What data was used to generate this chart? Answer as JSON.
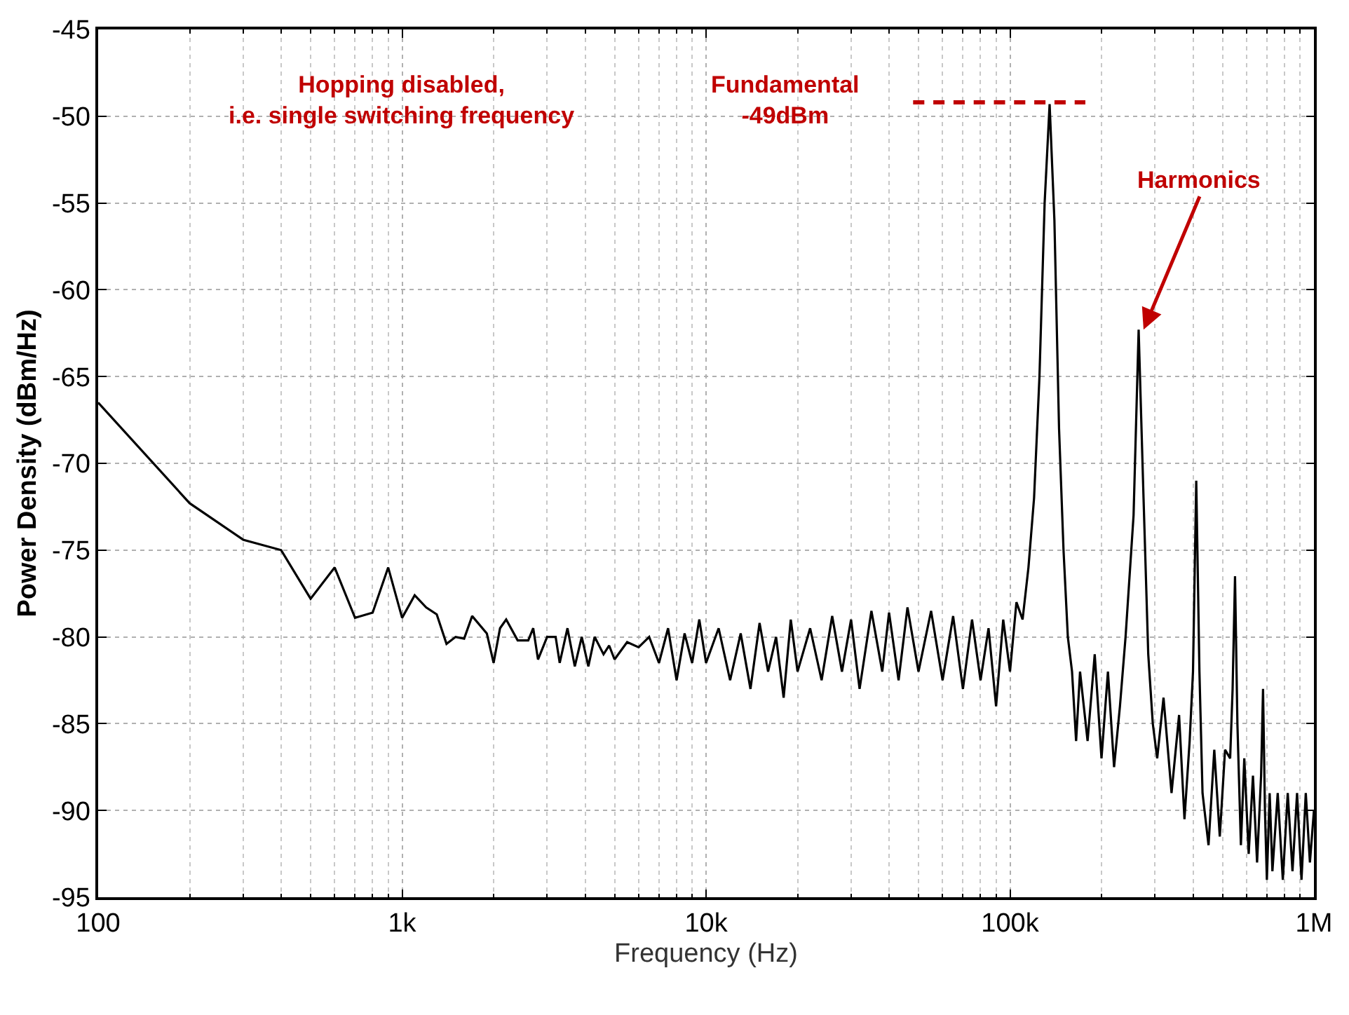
{
  "chart_data": {
    "type": "line",
    "xlabel": "Frequency (Hz)",
    "ylabel": "Power Density (dBm/Hz)",
    "log": "x",
    "grid": true,
    "legend": false,
    "marker": "none",
    "xlim": [
      100,
      1000000
    ],
    "xticks": [
      {
        "value": 100,
        "label": "100"
      },
      {
        "value": 1000,
        "label": "1k"
      },
      {
        "value": 10000,
        "label": "10k"
      },
      {
        "value": 100000,
        "label": "100k"
      },
      {
        "value": 1000000,
        "label": "1M"
      }
    ],
    "ylim": [
      -95,
      -45
    ],
    "yticks": [
      -95,
      -90,
      -85,
      -80,
      -75,
      -70,
      -65,
      -60,
      -55,
      -50,
      -45
    ],
    "annotations": [
      "Hopping disabled,\ni.e. single switching frequency",
      "Fundamental\n-49dBm",
      {
        "text": "Harmonics",
        "x": 275000,
        "y": -62.3
      }
    ],
    "series": [
      {
        "color": "#000000",
        "line_style": "solid",
        "x": [
          100,
          200,
          300,
          400,
          500,
          600,
          700,
          800,
          900,
          1000,
          1100,
          1200,
          1300,
          1400,
          1500,
          1600,
          1700,
          1900,
          2000,
          2100,
          2200,
          2400,
          2600,
          2700,
          2800,
          3000,
          3200,
          3300,
          3500,
          3700,
          3900,
          4100,
          4300,
          4600,
          4800,
          5000,
          5500,
          6000,
          6500,
          7000,
          7500,
          8000,
          8500,
          9000,
          9500,
          10000,
          11000,
          12000,
          13000,
          14000,
          15000,
          16000,
          17000,
          18000,
          19000,
          20000,
          22000,
          24000,
          26000,
          28000,
          30000,
          32000,
          35000,
          38000,
          40000,
          43000,
          46000,
          50000,
          55000,
          60000,
          65000,
          70000,
          75000,
          80000,
          85000,
          90000,
          95000,
          100000,
          105000,
          110000,
          115000,
          120000,
          125000,
          130000,
          135000,
          140000,
          145000,
          150000,
          155000,
          160000,
          165000,
          170000,
          180000,
          190000,
          200000,
          210000,
          220000,
          230000,
          240000,
          255000,
          265000,
          275000,
          285000,
          295000,
          305000,
          320000,
          340000,
          360000,
          375000,
          390000,
          400000,
          410000,
          420000,
          430000,
          450000,
          470000,
          490000,
          510000,
          530000,
          540000,
          550000,
          560000,
          575000,
          590000,
          610000,
          630000,
          650000,
          670000,
          680000,
          690000,
          700000,
          715000,
          730000,
          760000,
          790000,
          820000,
          850000,
          880000,
          910000,
          940000,
          970000,
          1000000
        ],
        "values": [
          -66.5,
          -72.3,
          -74.4,
          -75,
          -77.8,
          -76,
          -78.9,
          -78.6,
          -76,
          -78.9,
          -77.6,
          -78.3,
          -78.7,
          -80.4,
          -80,
          -80.1,
          -78.8,
          -79.8,
          -81.5,
          -79.5,
          -79,
          -80.2,
          -80.2,
          -79.5,
          -81.3,
          -80,
          -80,
          -81.5,
          -79.5,
          -81.7,
          -80,
          -81.7,
          -80,
          -81,
          -80.5,
          -81.3,
          -80.3,
          -80.6,
          -80,
          -81.5,
          -79.5,
          -82.5,
          -79.8,
          -81.5,
          -79,
          -81.5,
          -79.5,
          -82.5,
          -79.8,
          -83,
          -79.2,
          -82,
          -80,
          -83.5,
          -79,
          -82,
          -79.5,
          -82.5,
          -78.8,
          -82,
          -79,
          -83,
          -78.5,
          -82,
          -78.6,
          -82.5,
          -78.3,
          -82,
          -78.5,
          -82.5,
          -78.8,
          -83,
          -79,
          -82.5,
          -79.5,
          -84,
          -79,
          -82,
          -78,
          -79,
          -76,
          -72,
          -65,
          -55,
          -49.3,
          -56,
          -68,
          -75,
          -80,
          -82,
          -86,
          -82,
          -86,
          -81,
          -87,
          -82,
          -87.5,
          -84,
          -80,
          -73,
          -62.3,
          -72,
          -81,
          -85,
          -87,
          -83.5,
          -89,
          -84.5,
          -90.5,
          -86,
          -82,
          -71,
          -82,
          -89,
          -92,
          -86.5,
          -91.5,
          -86.5,
          -87,
          -83,
          -76.5,
          -85,
          -92,
          -87,
          -92.5,
          -88,
          -93,
          -88,
          -83,
          -90,
          -94,
          -89,
          -93.5,
          -89,
          -94,
          -89,
          -93.5,
          -89,
          -94,
          -89,
          -93,
          -90
        ]
      },
      {
        "color": "#c00000",
        "line_style": "dashed",
        "x": [
          48000,
          177000
        ],
        "values": [
          -49.2,
          -49.2
        ]
      }
    ]
  }
}
